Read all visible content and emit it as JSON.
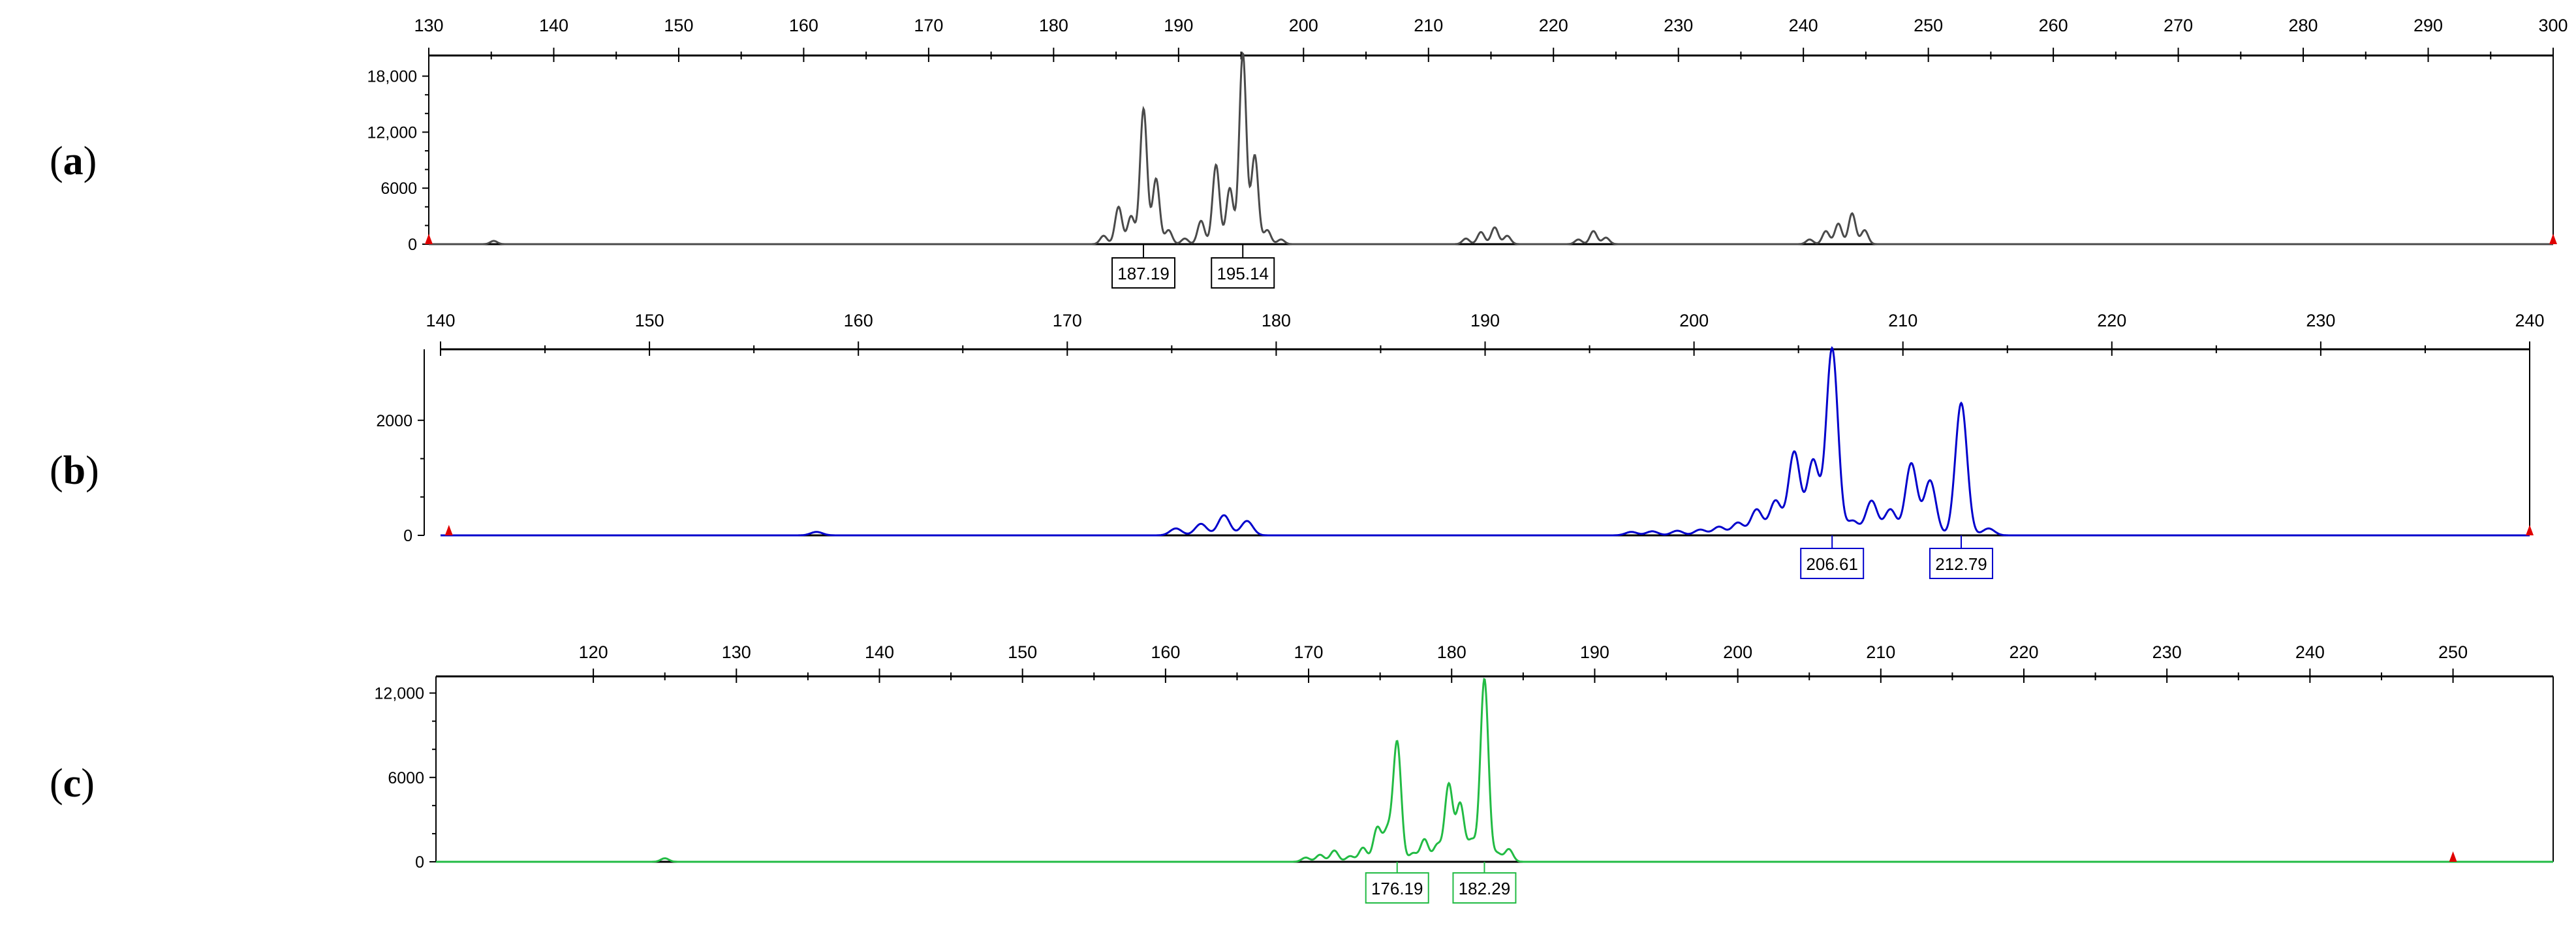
{
  "panels": [
    {
      "label": "a"
    },
    {
      "label": "b"
    },
    {
      "label": "c"
    }
  ],
  "chart_data": [
    {
      "type": "line",
      "panel": "a",
      "color": "#4a4a4a",
      "xlim": [
        130,
        300
      ],
      "xticks": [
        130,
        140,
        150,
        160,
        170,
        180,
        190,
        200,
        210,
        220,
        230,
        240,
        250,
        260,
        270,
        280,
        290,
        300
      ],
      "ylim": [
        0,
        20000
      ],
      "yticks": [
        {
          "v": 0,
          "label": "0"
        },
        {
          "v": 6000,
          "label": "6000"
        },
        {
          "v": 12000,
          "label": "12,000"
        },
        {
          "v": 18000,
          "label": "18,000"
        }
      ],
      "peaks": [
        {
          "x": 184.0,
          "y": 900
        },
        {
          "x": 185.2,
          "y": 4000
        },
        {
          "x": 186.2,
          "y": 3000
        },
        {
          "x": 187.2,
          "y": 14500
        },
        {
          "x": 188.2,
          "y": 7000
        },
        {
          "x": 189.2,
          "y": 1500
        },
        {
          "x": 190.5,
          "y": 600
        },
        {
          "x": 191.8,
          "y": 2500
        },
        {
          "x": 193.0,
          "y": 8500
        },
        {
          "x": 194.1,
          "y": 6000
        },
        {
          "x": 195.14,
          "y": 20500
        },
        {
          "x": 196.1,
          "y": 9500
        },
        {
          "x": 197.1,
          "y": 1500
        },
        {
          "x": 198.2,
          "y": 500
        },
        {
          "x": 213.0,
          "y": 600
        },
        {
          "x": 214.2,
          "y": 1300
        },
        {
          "x": 215.3,
          "y": 1800
        },
        {
          "x": 216.3,
          "y": 900
        },
        {
          "x": 222.0,
          "y": 500
        },
        {
          "x": 223.2,
          "y": 1400
        },
        {
          "x": 224.2,
          "y": 700
        },
        {
          "x": 240.5,
          "y": 500
        },
        {
          "x": 241.8,
          "y": 1400
        },
        {
          "x": 242.8,
          "y": 2200
        },
        {
          "x": 243.9,
          "y": 3300
        },
        {
          "x": 244.9,
          "y": 1500
        },
        {
          "x": 135.2,
          "y": 350
        }
      ],
      "sizing_labels": [
        "187.19",
        "195.14"
      ],
      "sizing_positions": [
        187.19,
        195.14
      ],
      "baseline_markers": [
        130,
        300
      ]
    },
    {
      "type": "line",
      "panel": "b",
      "color": "#0000cc",
      "xlim": [
        140,
        240
      ],
      "xticks": [
        140,
        150,
        160,
        170,
        180,
        190,
        200,
        210,
        220,
        230,
        240
      ],
      "ylim": [
        0,
        3200
      ],
      "yticks": [
        {
          "v": 0,
          "label": "0"
        },
        {
          "v": 2000,
          "label": "2000"
        }
      ],
      "peaks": [
        {
          "x": 158.0,
          "y": 60
        },
        {
          "x": 175.2,
          "y": 120
        },
        {
          "x": 176.4,
          "y": 200
        },
        {
          "x": 177.5,
          "y": 350
        },
        {
          "x": 178.6,
          "y": 250
        },
        {
          "x": 197.0,
          "y": 60
        },
        {
          "x": 198.0,
          "y": 70
        },
        {
          "x": 199.2,
          "y": 80
        },
        {
          "x": 200.3,
          "y": 100
        },
        {
          "x": 201.2,
          "y": 150
        },
        {
          "x": 202.1,
          "y": 220
        },
        {
          "x": 203.0,
          "y": 450
        },
        {
          "x": 203.9,
          "y": 600
        },
        {
          "x": 204.8,
          "y": 1450
        },
        {
          "x": 205.7,
          "y": 1300
        },
        {
          "x": 206.61,
          "y": 3250
        },
        {
          "x": 207.6,
          "y": 250
        },
        {
          "x": 208.5,
          "y": 600
        },
        {
          "x": 209.4,
          "y": 450
        },
        {
          "x": 210.4,
          "y": 1250
        },
        {
          "x": 211.3,
          "y": 950
        },
        {
          "x": 212.79,
          "y": 2300
        },
        {
          "x": 214.1,
          "y": 120
        }
      ],
      "sizing_labels": [
        "206.61",
        "212.79"
      ],
      "sizing_positions": [
        206.61,
        212.79
      ],
      "baseline_markers": [
        140.4,
        240
      ]
    },
    {
      "type": "line",
      "panel": "c",
      "color": "#22bb44",
      "xlim": [
        109,
        257
      ],
      "xticks": [
        120,
        130,
        140,
        150,
        160,
        170,
        180,
        190,
        200,
        210,
        220,
        230,
        240,
        250
      ],
      "ylim": [
        0,
        13000
      ],
      "yticks": [
        {
          "v": 0,
          "label": "0"
        },
        {
          "v": 6000,
          "label": "6000"
        },
        {
          "v": 12000,
          "label": "12,000"
        }
      ],
      "peaks": [
        {
          "x": 125.0,
          "y": 250
        },
        {
          "x": 169.8,
          "y": 300
        },
        {
          "x": 170.8,
          "y": 500
        },
        {
          "x": 171.8,
          "y": 800
        },
        {
          "x": 172.9,
          "y": 400
        },
        {
          "x": 173.8,
          "y": 1000
        },
        {
          "x": 174.8,
          "y": 2400
        },
        {
          "x": 175.5,
          "y": 2100
        },
        {
          "x": 176.19,
          "y": 8500
        },
        {
          "x": 177.3,
          "y": 600
        },
        {
          "x": 178.1,
          "y": 1600
        },
        {
          "x": 179.0,
          "y": 1200
        },
        {
          "x": 179.8,
          "y": 5500
        },
        {
          "x": 180.6,
          "y": 4100
        },
        {
          "x": 181.4,
          "y": 1500
        },
        {
          "x": 182.29,
          "y": 13000
        },
        {
          "x": 183.2,
          "y": 600
        },
        {
          "x": 184.0,
          "y": 900
        }
      ],
      "sizing_labels": [
        "176.19",
        "182.29"
      ],
      "sizing_positions": [
        176.19,
        182.29
      ],
      "baseline_markers": [
        250
      ]
    }
  ]
}
